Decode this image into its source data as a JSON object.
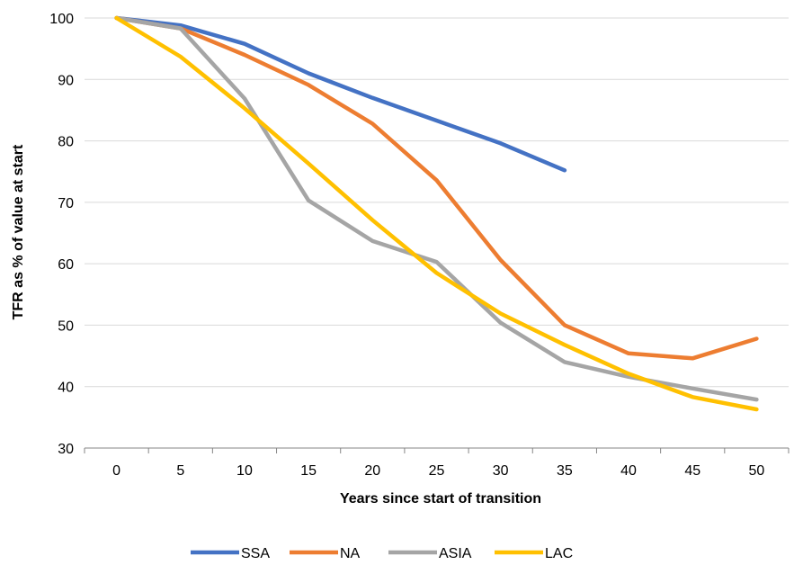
{
  "chart_data": {
    "type": "line",
    "title": "",
    "xlabel": "Years since start of transition",
    "ylabel": "TFR as % of value at start",
    "categories": [
      "0",
      "5",
      "10",
      "15",
      "20",
      "25",
      "30",
      "35",
      "40",
      "45",
      "50"
    ],
    "ylim": [
      30,
      100
    ],
    "yticks": [
      "30",
      "40",
      "50",
      "60",
      "70",
      "80",
      "90",
      "100"
    ],
    "grid": true,
    "legend_position": "bottom",
    "series": [
      {
        "name": "SSA",
        "color": "#4472C4",
        "values": [
          100,
          98.8,
          95.8,
          91,
          87,
          83.3,
          79.6,
          75.2,
          null,
          null,
          null
        ]
      },
      {
        "name": "NA",
        "color": "#ED7D31",
        "values": [
          100,
          98.3,
          94,
          89.1,
          82.8,
          73.6,
          60.6,
          50,
          45.4,
          44.6,
          47.8
        ]
      },
      {
        "name": "ASIA",
        "color": "#A5A5A5",
        "values": [
          100,
          98.3,
          86.9,
          70.3,
          63.7,
          60.3,
          50.4,
          44,
          41.6,
          39.7,
          37.9
        ]
      },
      {
        "name": "LAC",
        "color": "#FFC000",
        "values": [
          100,
          93.7,
          85.3,
          76.3,
          67.1,
          58.5,
          51.9,
          46.8,
          42.1,
          38.3,
          36.3
        ]
      }
    ]
  }
}
